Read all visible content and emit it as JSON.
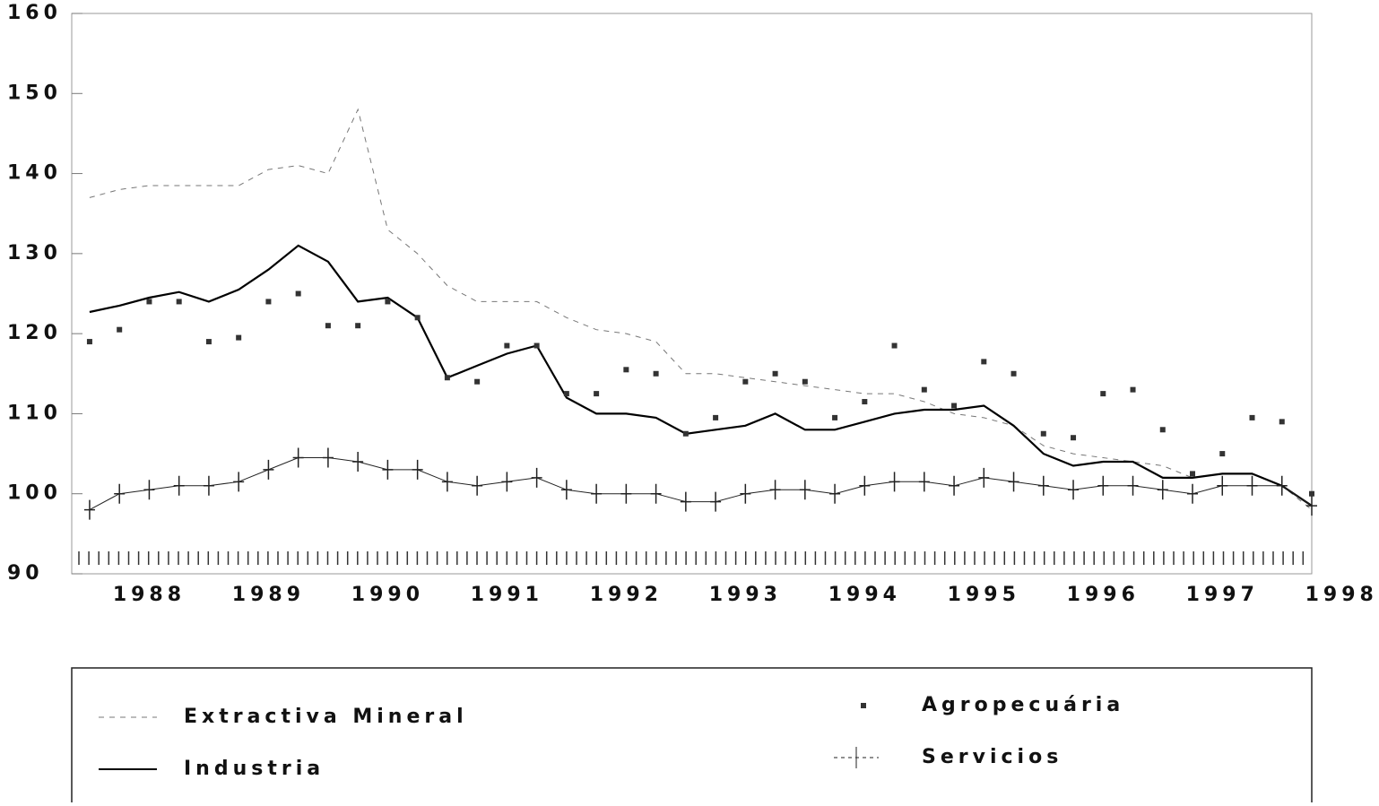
{
  "chart_data": {
    "type": "line",
    "xlim": [
      1987.35,
      1997.75
    ],
    "xticks": [
      1988,
      1989,
      1990,
      1991,
      1992,
      1993,
      1994,
      1995,
      1996,
      1997,
      1998
    ],
    "ylim": [
      90,
      160
    ],
    "yticks": [
      90,
      100,
      110,
      120,
      130,
      140,
      150,
      160
    ],
    "x": [
      1987.5,
      1987.75,
      1988,
      1988.25,
      1988.5,
      1988.75,
      1989,
      1989.25,
      1989.5,
      1989.75,
      1990,
      1990.25,
      1990.5,
      1990.75,
      1991,
      1991.25,
      1991.5,
      1991.75,
      1992,
      1992.25,
      1992.5,
      1992.75,
      1993,
      1993.25,
      1993.5,
      1993.75,
      1994,
      1994.25,
      1994.5,
      1994.75,
      1995,
      1995.25,
      1995.5,
      1995.75,
      1996,
      1996.25,
      1996.5,
      1996.75,
      1997,
      1997.25,
      1997.5,
      1997.75
    ],
    "series": [
      {
        "name": "Extractiva Mineral",
        "color": "#777777",
        "style": "dashed",
        "values": [
          137,
          138,
          138.5,
          138.5,
          138.5,
          138.5,
          140.5,
          141,
          140,
          148,
          133,
          130,
          126,
          124,
          124,
          124,
          122,
          120.5,
          120,
          119,
          115,
          115,
          114.5,
          114,
          113.5,
          113,
          112.5,
          112.5,
          111.5,
          110,
          109.5,
          108.5,
          106,
          105,
          104.5,
          104,
          103.5,
          102,
          102.5,
          102.5,
          101,
          98
        ]
      },
      {
        "name": "Industria",
        "color": "#000000",
        "style": "solid",
        "values": [
          122.7,
          123.5,
          124.5,
          125.2,
          124,
          125.5,
          128,
          131,
          129,
          124,
          124.5,
          122,
          114.5,
          116,
          117.5,
          118.5,
          112,
          110,
          110,
          109.5,
          107.5,
          108,
          108.5,
          110,
          108,
          108,
          109,
          110,
          110.5,
          110.5,
          111,
          108.5,
          105,
          103.5,
          104,
          104,
          102,
          102,
          102.5,
          102.5,
          101,
          98.5
        ]
      },
      {
        "name": "Agropecuária",
        "color": "#333333",
        "style": "square",
        "values": [
          119,
          120.5,
          124,
          124,
          119,
          119.5,
          124,
          125,
          121,
          121,
          124,
          122,
          114.5,
          114,
          118.5,
          118.5,
          112.5,
          112.5,
          115.5,
          115,
          107.5,
          109.5,
          114,
          115,
          114,
          109.5,
          111.5,
          118.5,
          113,
          111,
          116.5,
          115,
          107.5,
          107,
          112.5,
          113,
          108,
          102.5,
          105,
          109.5,
          109,
          100
        ]
      },
      {
        "name": "Servicios",
        "color": "#222222",
        "style": "plus",
        "values": [
          98,
          100,
          100.5,
          101,
          101,
          101.5,
          103,
          104.5,
          104.5,
          104,
          103,
          103,
          101.5,
          101,
          101.5,
          102,
          100.5,
          100,
          100,
          100,
          99,
          99,
          100,
          100.5,
          100.5,
          100,
          101,
          101.5,
          101.5,
          101,
          102,
          101.5,
          101,
          100.5,
          101,
          101,
          100.5,
          100,
          101,
          101,
          101,
          98.5
        ]
      }
    ]
  }
}
